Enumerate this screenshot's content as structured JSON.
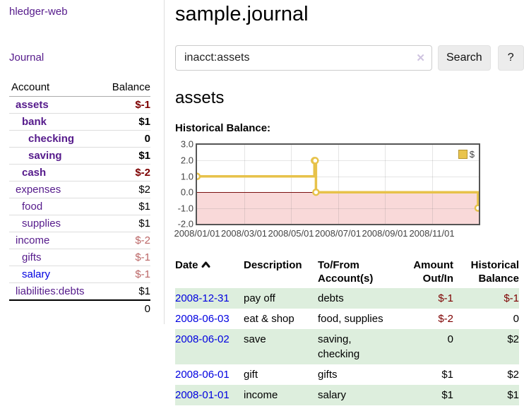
{
  "app": {
    "brand": "hledger-web"
  },
  "sidebar": {
    "journal_link": "Journal",
    "accounts_table": {
      "account_header": "Account",
      "balance_header": "Balance",
      "rows": [
        {
          "name": "assets",
          "balance": "$-1"
        },
        {
          "name": "bank",
          "balance": "$1"
        },
        {
          "name": "checking",
          "balance": "0"
        },
        {
          "name": "saving",
          "balance": "$1"
        },
        {
          "name": "cash",
          "balance": "$-2"
        },
        {
          "name": "expenses",
          "balance": "$2"
        },
        {
          "name": "food",
          "balance": "$1"
        },
        {
          "name": "supplies",
          "balance": "$1"
        },
        {
          "name": "income",
          "balance": "$-2"
        },
        {
          "name": "gifts",
          "balance": "$-1"
        },
        {
          "name": "salary",
          "balance": "$-1"
        },
        {
          "name": "liabilities:debts",
          "balance": "$1"
        }
      ],
      "total": "0"
    }
  },
  "main": {
    "title": "sample.journal",
    "search": {
      "value": "inacct:assets",
      "clear_icon": "✕",
      "search_button": "Search",
      "help_button": "?"
    },
    "account_heading": "assets",
    "section_label": "Historical Balance:"
  },
  "chart_data": {
    "type": "line",
    "step": true,
    "title": "Historical Balance of assets",
    "series": [
      {
        "name": "$",
        "color": "#e7c24a",
        "points": [
          [
            "2008-01-01",
            1
          ],
          [
            "2008-06-01",
            2
          ],
          [
            "2008-06-02",
            2
          ],
          [
            "2008-06-03",
            0
          ],
          [
            "2008-12-31",
            -1
          ]
        ]
      }
    ],
    "x_ticks": [
      "2008/01/01",
      "2008/03/01",
      "2008/05/01",
      "2008/07/01",
      "2008/09/01",
      "2008/11/01"
    ],
    "y_ticks": [
      "3.0",
      "2.0",
      "1.0",
      "0.0",
      "-1.0",
      "-2.0"
    ],
    "ylim": [
      -2,
      3
    ],
    "x_start": "2008-01-01",
    "x_range_months": 12,
    "legend_position": "top-right",
    "negative_fill": "#f9d9d9",
    "zero_line_color": "#7a1010",
    "grid": true
  },
  "register": {
    "headers": {
      "date": "Date",
      "description": "Description",
      "account": "To/From Account(s)",
      "amount": "Amount Out/In",
      "balance": "Historical Balance"
    },
    "rows": [
      {
        "date": "2008-12-31",
        "description": "pay off",
        "accounts": "debts",
        "amount": "$-1",
        "balance": "$-1"
      },
      {
        "date": "2008-06-03",
        "description": "eat & shop",
        "accounts": "food, supplies",
        "amount": "$-2",
        "balance": "0"
      },
      {
        "date": "2008-06-02",
        "description": "save",
        "accounts": "saving, checking",
        "amount": "0",
        "balance": "$2"
      },
      {
        "date": "2008-06-01",
        "description": "gift",
        "accounts": "gifts",
        "amount": "$1",
        "balance": "$2"
      },
      {
        "date": "2008-01-01",
        "description": "income",
        "accounts": "salary",
        "amount": "$1",
        "balance": "$1"
      }
    ]
  }
}
